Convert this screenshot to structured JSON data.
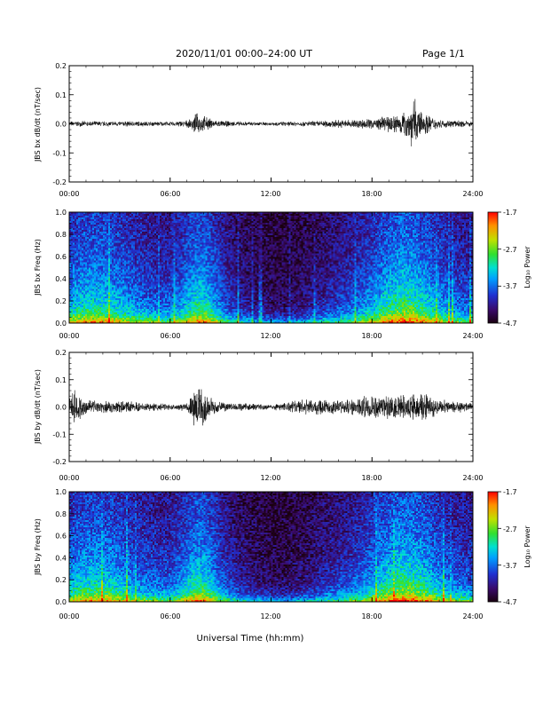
{
  "header": {
    "title": "2020/11/01  00:00–24:00 UT",
    "page": "Page 1/1"
  },
  "xaxis": {
    "label": "Universal Time (hh:mm)",
    "ticks": [
      "00:00",
      "06:00",
      "12:00",
      "18:00",
      "24:00"
    ],
    "range_hours": [
      0,
      24
    ]
  },
  "colorbar": {
    "label": "Log₁₀ Power",
    "ticks": [
      "-1.7",
      "-2.7",
      "-3.7",
      "-4.7"
    ],
    "range": [
      -4.7,
      -1.7
    ]
  },
  "chart_data": [
    {
      "type": "line",
      "ylabel": "JBS bx dB/dt (nT/sec)",
      "ylim": [
        -0.2,
        0.2
      ],
      "yticks": [
        "0.2",
        "0.1",
        "0.0",
        "-0.1",
        "-0.2"
      ],
      "envelope_x_hours": [
        0,
        2,
        4,
        6,
        7.2,
        7.5,
        8,
        8.6,
        9,
        10,
        12,
        14,
        16,
        18,
        19,
        20,
        20.5,
        20.8,
        21.2,
        22,
        24
      ],
      "envelope_y_amplitude": [
        0.01,
        0.01,
        0.01,
        0.008,
        0.015,
        0.04,
        0.03,
        0.015,
        0.012,
        0.009,
        0.007,
        0.01,
        0.015,
        0.02,
        0.03,
        0.05,
        0.1,
        0.06,
        0.04,
        0.015,
        0.01
      ]
    },
    {
      "type": "heatmap",
      "ylabel": "JBS bx Freq (Hz)",
      "ylim": [
        0,
        1.0
      ],
      "yticks": [
        "1.0",
        "0.8",
        "0.6",
        "0.4",
        "0.2",
        "0.0"
      ],
      "zlim": [
        -4.7,
        -1.7
      ]
    },
    {
      "type": "line",
      "ylabel": "JBS by dB/dt (nT/sec)",
      "ylim": [
        -0.2,
        0.2
      ],
      "yticks": [
        "0.2",
        "0.1",
        "0.0",
        "-0.1",
        "-0.2"
      ],
      "envelope_x_hours": [
        0,
        0.3,
        1,
        2,
        4,
        6,
        7,
        7.4,
        7.8,
        8.3,
        9,
        10,
        12,
        14,
        16,
        18,
        19,
        20,
        21,
        22,
        24
      ],
      "envelope_y_amplitude": [
        0.03,
        0.08,
        0.03,
        0.025,
        0.02,
        0.012,
        0.015,
        0.07,
        0.09,
        0.04,
        0.02,
        0.015,
        0.012,
        0.03,
        0.03,
        0.045,
        0.05,
        0.05,
        0.06,
        0.03,
        0.015
      ]
    },
    {
      "type": "heatmap",
      "ylabel": "JBS by Freq (Hz)",
      "ylim": [
        0,
        1.0
      ],
      "yticks": [
        "1.0",
        "0.8",
        "0.6",
        "0.4",
        "0.2",
        "0.0"
      ],
      "zlim": [
        -4.7,
        -1.7
      ]
    }
  ]
}
